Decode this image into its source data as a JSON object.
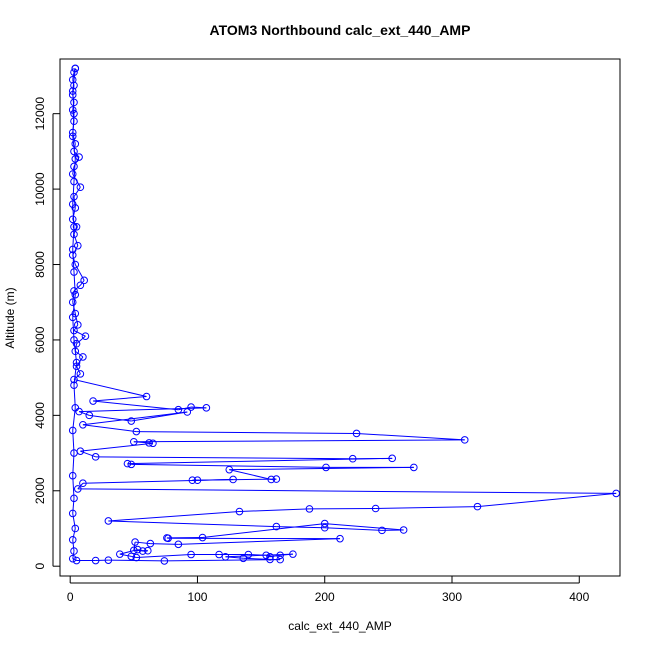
{
  "chart_data": {
    "type": "scatter",
    "title": "ATOM3 Northbound calc_ext_440_AMP",
    "xlabel": "calc_ext_440_AMP",
    "ylabel": "Altitude (m)",
    "xlim": [
      -8,
      432
    ],
    "ylim": [
      -260,
      13450
    ],
    "xticks": [
      0,
      100,
      200,
      300,
      400
    ],
    "yticks": [
      0,
      2000,
      4000,
      6000,
      8000,
      10000,
      12000
    ],
    "grid": false,
    "marker": "open-circle",
    "connect_points": true,
    "series": [
      {
        "color": "#0000ff",
        "points": [
          [
            4,
            13200
          ],
          [
            3,
            13100
          ],
          [
            2,
            12900
          ],
          [
            3,
            12750
          ],
          [
            2,
            12500
          ],
          [
            3,
            12300
          ],
          [
            2,
            12100
          ],
          [
            3,
            11800
          ],
          [
            2,
            11500
          ],
          [
            4,
            11200
          ],
          [
            3,
            11000
          ],
          [
            7,
            10850
          ],
          [
            3,
            10600
          ],
          [
            2,
            10400
          ],
          [
            8,
            10050
          ],
          [
            3,
            9800
          ],
          [
            4,
            9500
          ],
          [
            2,
            9200
          ],
          [
            5,
            9000
          ],
          [
            3,
            8800
          ],
          [
            6,
            8500
          ],
          [
            2,
            8250
          ],
          [
            4,
            8000
          ],
          [
            11,
            7580
          ],
          [
            8,
            7450
          ],
          [
            3,
            7300
          ],
          [
            2,
            7000
          ],
          [
            4,
            6700
          ],
          [
            6,
            6400
          ],
          [
            3,
            6250
          ],
          [
            12,
            6100
          ],
          [
            5,
            5900
          ],
          [
            4,
            5700
          ],
          [
            10,
            5550
          ],
          [
            5,
            5300
          ],
          [
            8,
            5100
          ],
          [
            3,
            4950
          ],
          [
            60,
            4500
          ],
          [
            18,
            4380
          ],
          [
            85,
            4150
          ],
          [
            95,
            4220
          ],
          [
            107,
            4200
          ],
          [
            7,
            4100
          ],
          [
            15,
            4000
          ],
          [
            48,
            3850
          ],
          [
            92,
            4090
          ],
          [
            10,
            3750
          ],
          [
            52,
            3570
          ],
          [
            225,
            3520
          ],
          [
            310,
            3350
          ],
          [
            50,
            3300
          ],
          [
            62,
            3270
          ],
          [
            65,
            3260
          ],
          [
            8,
            3050
          ],
          [
            20,
            2900
          ],
          [
            222,
            2850
          ],
          [
            253,
            2860
          ],
          [
            45,
            2720
          ],
          [
            48,
            2700
          ],
          [
            201,
            2620
          ],
          [
            270,
            2620
          ],
          [
            125,
            2560
          ],
          [
            158,
            2300
          ],
          [
            162,
            2310
          ],
          [
            96,
            2280
          ],
          [
            100,
            2280
          ],
          [
            128,
            2300
          ],
          [
            10,
            2200
          ],
          [
            6,
            2050
          ],
          [
            429,
            1930
          ],
          [
            320,
            1580
          ],
          [
            240,
            1530
          ],
          [
            188,
            1520
          ],
          [
            133,
            1450
          ],
          [
            30,
            1200
          ],
          [
            162,
            1050
          ],
          [
            200,
            1020
          ],
          [
            245,
            950
          ],
          [
            262,
            960
          ],
          [
            200,
            1130
          ],
          [
            104,
            760
          ],
          [
            76,
            750
          ],
          [
            77,
            740
          ],
          [
            212,
            730
          ],
          [
            85,
            580
          ],
          [
            63,
            600
          ],
          [
            51,
            640
          ],
          [
            50,
            420
          ],
          [
            61,
            410
          ],
          [
            57,
            400
          ],
          [
            53,
            440
          ],
          [
            39,
            320
          ],
          [
            48,
            260
          ],
          [
            52,
            230
          ],
          [
            95,
            310
          ],
          [
            117,
            310
          ],
          [
            140,
            310
          ],
          [
            154,
            290
          ],
          [
            157,
            250
          ],
          [
            165,
            290
          ],
          [
            175,
            320
          ],
          [
            122,
            250
          ],
          [
            136,
            210
          ],
          [
            157,
            180
          ],
          [
            165,
            175
          ],
          [
            74,
            140
          ],
          [
            30,
            160
          ],
          [
            20,
            150
          ],
          [
            5,
            150
          ],
          [
            2,
            200
          ],
          [
            3,
            400
          ],
          [
            2,
            700
          ],
          [
            4,
            1000
          ],
          [
            2,
            1400
          ],
          [
            3,
            1800
          ],
          [
            2,
            2400
          ],
          [
            3,
            3000
          ],
          [
            2,
            3600
          ],
          [
            4,
            4200
          ],
          [
            3,
            4800
          ],
          [
            5,
            5400
          ],
          [
            3,
            6000
          ],
          [
            2,
            6600
          ],
          [
            4,
            7200
          ],
          [
            3,
            7800
          ],
          [
            2,
            8400
          ],
          [
            3,
            9000
          ],
          [
            2,
            9600
          ],
          [
            3,
            10200
          ],
          [
            4,
            10800
          ],
          [
            2,
            11400
          ],
          [
            3,
            12000
          ],
          [
            2,
            12600
          ],
          [
            4,
            13200
          ]
        ]
      }
    ]
  }
}
